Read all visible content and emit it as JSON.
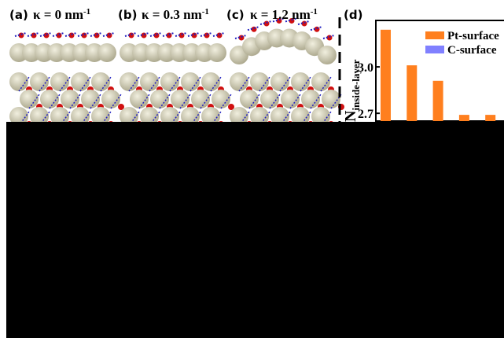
{
  "panels": [
    {
      "label": "(a)",
      "kappa": "κ = 0 nm",
      "exponent": "-1"
    },
    {
      "label": "(b)",
      "kappa": "κ = 0.3 nm",
      "exponent": "-1"
    },
    {
      "label": "(c)",
      "kappa": "κ = 1.2 nm",
      "exponent": "-1"
    }
  ],
  "chart_data": {
    "type": "bar",
    "label": "(d)",
    "y_label": "N",
    "y_label_sub": "inside-layer",
    "categories": [
      null,
      null,
      null,
      null,
      null
    ],
    "series": [
      {
        "name": "Pt-surface",
        "color": "#ff7f1e",
        "values": [
          3.24,
          3.01,
          2.91,
          2.69,
          2.69
        ]
      },
      {
        "name": "C-surface",
        "color": "#8080ff",
        "values": [
          null,
          null,
          null,
          null,
          null
        ]
      }
    ],
    "ylim": [
      2.65,
      3.3
    ],
    "yticks": [
      {
        "value": 2.7,
        "label": "2.7"
      },
      {
        "value": 3.0,
        "label": "3.0"
      }
    ]
  }
}
